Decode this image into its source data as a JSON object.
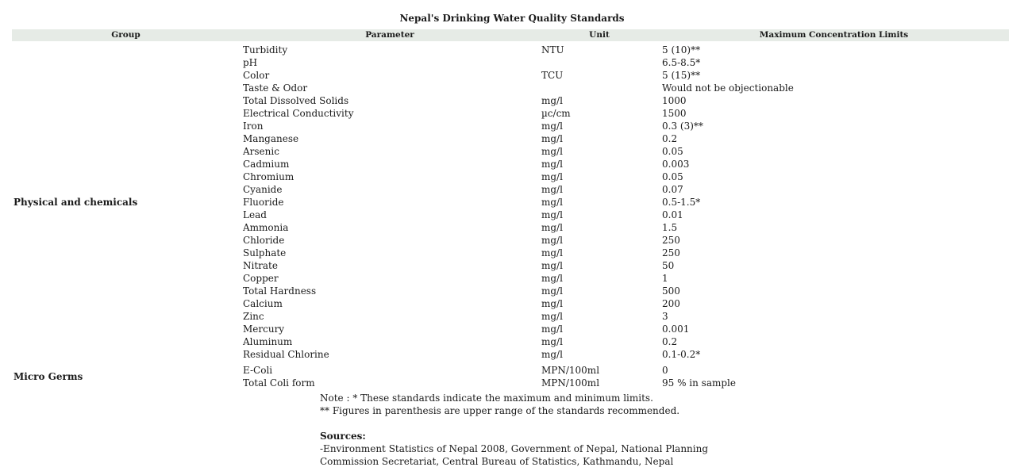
{
  "title": "Nepal's Drinking Water Quality Standards",
  "headers": {
    "group": "Group",
    "parameter": "Parameter",
    "unit": "Unit",
    "limit": "Maximum Concentration Limits"
  },
  "groups": [
    {
      "label": "Physical and chemicals"
    },
    {
      "label": "Micro Germs"
    }
  ],
  "rows_physical": [
    {
      "parameter": "Turbidity",
      "unit": "NTU",
      "limit": "5 (10)**"
    },
    {
      "parameter": "pH",
      "unit": "",
      "limit": "6.5-8.5*"
    },
    {
      "parameter": "Color",
      "unit": "TCU",
      "limit": "5 (15)**"
    },
    {
      "parameter": "Taste & Odor",
      "unit": "",
      "limit": "Would not be objectionable"
    },
    {
      "parameter": "Total Dissolved Solids",
      "unit": "mg/l",
      "limit": "1000"
    },
    {
      "parameter": "Electrical Conductivity",
      "unit": "µc/cm",
      "limit": "1500"
    },
    {
      "parameter": "Iron",
      "unit": "mg/l",
      "limit": "0.3 (3)**"
    },
    {
      "parameter": "Manganese",
      "unit": "mg/l",
      "limit": "0.2"
    },
    {
      "parameter": "Arsenic",
      "unit": "mg/l",
      "limit": "0.05"
    },
    {
      "parameter": "Cadmium",
      "unit": "mg/l",
      "limit": "0.003"
    },
    {
      "parameter": "Chromium",
      "unit": "mg/l",
      "limit": "0.05"
    },
    {
      "parameter": "Cyanide",
      "unit": "mg/l",
      "limit": "0.07"
    },
    {
      "parameter": "Fluoride",
      "unit": "mg/l",
      "limit": "0.5-1.5*"
    },
    {
      "parameter": "Lead",
      "unit": "mg/l",
      "limit": "0.01"
    },
    {
      "parameter": "Ammonia",
      "unit": "mg/l",
      "limit": "1.5"
    },
    {
      "parameter": "Chloride",
      "unit": "mg/l",
      "limit": "250"
    },
    {
      "parameter": "Sulphate",
      "unit": "mg/l",
      "limit": "250"
    },
    {
      "parameter": "Nitrate",
      "unit": "mg/l",
      "limit": "50"
    },
    {
      "parameter": "Copper",
      "unit": "mg/l",
      "limit": "1"
    },
    {
      "parameter": "Total Hardness",
      "unit": "mg/l",
      "limit": "500"
    },
    {
      "parameter": "Calcium",
      "unit": "mg/l",
      "limit": "200"
    },
    {
      "parameter": "Zinc",
      "unit": "mg/l",
      "limit": "3"
    },
    {
      "parameter": "Mercury",
      "unit": "mg/l",
      "limit": "0.001"
    },
    {
      "parameter": "Aluminum",
      "unit": "mg/l",
      "limit": "0.2"
    },
    {
      "parameter": "Residual Chlorine",
      "unit": "mg/l",
      "limit": "0.1-0.2*"
    }
  ],
  "rows_micro": [
    {
      "parameter": "E-Coli",
      "unit": "MPN/100ml",
      "limit": "0"
    },
    {
      "parameter": "Total Coli form",
      "unit": "MPN/100ml",
      "limit": "95 % in sample"
    }
  ],
  "notes": {
    "line1": "Note : * These standards indicate the maximum and minimum limits.",
    "line2": "** Figures in parenthesis are upper range of the standards recommended.",
    "sources_label": "Sources:",
    "source1": "-Environment Statistics of Nepal 2008, Government of Nepal, National Planning",
    "source2": "Commission Secretariat, Central Bureau of Statistics, Kathmandu, Nepal"
  }
}
